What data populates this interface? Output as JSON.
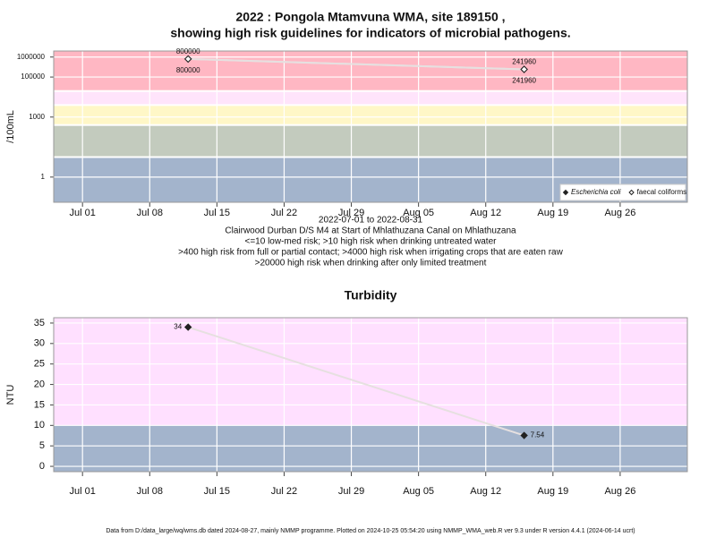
{
  "chart_data": [
    {
      "type": "line",
      "log_y": true,
      "title": [
        "2022 : Pongola Mtamvuna WMA, site 189150 ,",
        "showing high risk guidelines for indicators of microbial pathogens."
      ],
      "y_label": "/100mL",
      "notes": [
        "2022-07-01 to 2022-08-31",
        "Clairwood Durban D/S M4 at Start of Mhlathuzana Canal on Mhlathuzana",
        "<=10 low-med risk; >10 high risk when drinking untreated water",
        ">400 high risk from full or partial contact; >4000 high risk when irrigating crops that are eaten raw",
        ">20000 high risk when drinking after only limited treatment"
      ],
      "x": [
        "2022-07-12",
        "2022-08-16"
      ],
      "xlim": [
        "2022-06-28",
        "2022-09-02"
      ],
      "xticks": [
        {
          "value": "2022-07-01",
          "label": "Jul 01"
        },
        {
          "value": "2022-07-08",
          "label": "Jul 08"
        },
        {
          "value": "2022-07-15",
          "label": "Jul 15"
        },
        {
          "value": "2022-07-22",
          "label": "Jul 22"
        },
        {
          "value": "2022-07-29",
          "label": "Jul 29"
        },
        {
          "value": "2022-08-05",
          "label": "Aug 05"
        },
        {
          "value": "2022-08-12",
          "label": "Aug 12"
        },
        {
          "value": "2022-08-19",
          "label": "Aug 19"
        },
        {
          "value": "2022-08-26",
          "label": "Aug 26"
        }
      ],
      "ylim": [
        0.055,
        2000000
      ],
      "yticks": [
        1,
        1000,
        100000,
        1000000
      ],
      "band_limits": [
        10,
        400,
        4000,
        20000
      ],
      "band_colors": [
        "#a3b4cc",
        "#c3cbbe",
        "#fff7c7",
        "#ffe4fb",
        "#ffb7c3"
      ],
      "line_color": "#e6e0e0",
      "legend": "bottom-right",
      "series": [
        {
          "name": "Escherichia coli",
          "color": "#222222",
          "values": [
            800000,
            241960
          ]
        },
        {
          "name": "faecal coliforms",
          "color": "#ffffff",
          "values": [
            800000,
            241960
          ]
        }
      ]
    },
    {
      "type": "line",
      "log_y": false,
      "title": [
        "Turbidity"
      ],
      "y_label": "NTU",
      "x": [
        "2022-07-12",
        "2022-08-16"
      ],
      "xlim": [
        "2022-06-28",
        "2022-09-02"
      ],
      "xticks": [
        {
          "value": "2022-07-01",
          "label": "Jul 01"
        },
        {
          "value": "2022-07-08",
          "label": "Jul 08"
        },
        {
          "value": "2022-07-15",
          "label": "Jul 15"
        },
        {
          "value": "2022-07-22",
          "label": "Jul 22"
        },
        {
          "value": "2022-07-29",
          "label": "Jul 29"
        },
        {
          "value": "2022-08-05",
          "label": "Aug 05"
        },
        {
          "value": "2022-08-12",
          "label": "Aug 12"
        },
        {
          "value": "2022-08-19",
          "label": "Aug 19"
        },
        {
          "value": "2022-08-26",
          "label": "Aug 26"
        }
      ],
      "ylim": [
        -1.3,
        36.3
      ],
      "yticks": [
        0,
        5,
        10,
        15,
        20,
        25,
        30,
        35
      ],
      "band_limits": [
        10
      ],
      "band_colors": [
        "#a3b4cc",
        "#ffe0ff"
      ],
      "line_color": "#e6e0e0",
      "series": [
        {
          "name": "Turbidity",
          "color": "#222222",
          "values": [
            34,
            7.54
          ]
        }
      ]
    }
  ],
  "footer": "Data from D:/data_large/wq/wms.db dated 2024-08-27, mainly NMMP programme. Plotted on 2024-10-25 05:54:20 using NMMP_WMA_web.R ver 9.3 under R version 4.4.1 (2024-06-14 ucrt)"
}
